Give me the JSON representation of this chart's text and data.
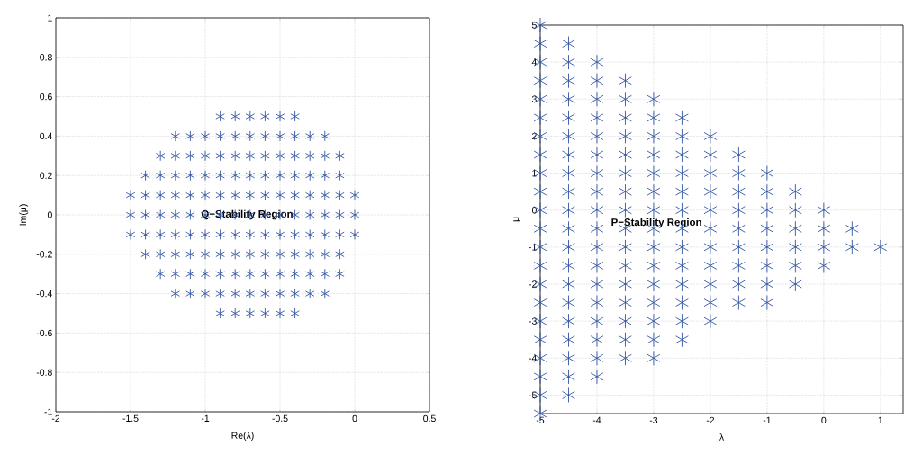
{
  "chart_data": [
    {
      "type": "scatter",
      "xlabel": "Re(λ)",
      "ylabel": "Im(μ)",
      "xlim": [
        -2,
        0.5
      ],
      "ylim": [
        -1,
        1
      ],
      "xticks": [
        -2,
        -1.5,
        -1,
        -0.5,
        0,
        0.5
      ],
      "yticks": [
        -1,
        -0.8,
        -0.6,
        -0.4,
        -0.2,
        0,
        0.2,
        0.4,
        0.6,
        0.8,
        1
      ],
      "grid": true,
      "marker": "cross",
      "annotations": [
        {
          "text": "Q−Stability Region",
          "x": -0.72,
          "y": 0
        }
      ],
      "series": [
        {
          "color": "#3053a0",
          "x": [
            -0.9,
            -0.8,
            -0.7,
            -0.6,
            -0.5,
            -0.4,
            -1.2,
            -1.1,
            -1,
            -0.9,
            -0.8,
            -0.7,
            -0.6,
            -0.5,
            -0.4,
            -0.3,
            -0.2,
            -1.3,
            -1.2,
            -1.1,
            -1,
            -0.9,
            -0.8,
            -0.7,
            -0.6,
            -0.5,
            -0.4,
            -0.3,
            -0.2,
            -0.1,
            -1.4,
            -1.3,
            -1.2,
            -1.1,
            -1,
            -0.9,
            -0.8,
            -0.7,
            -0.6,
            -0.5,
            -0.4,
            -0.3,
            -0.2,
            -0.1,
            -1.5,
            -1.4,
            -1.3,
            -1.2,
            -1.1,
            -1,
            -0.9,
            -0.8,
            -0.7,
            -0.6,
            -0.5,
            -0.4,
            -0.3,
            -0.2,
            -0.1,
            0,
            -1.5,
            -1.4,
            -1.3,
            -1.2,
            -1.1,
            -1,
            -0.9,
            -0.8,
            -0.7,
            -0.6,
            -0.5,
            -0.4,
            -0.3,
            -0.2,
            -0.1,
            0,
            -1.5,
            -1.4,
            -1.3,
            -1.2,
            -1.1,
            -1,
            -0.9,
            -0.8,
            -0.7,
            -0.6,
            -0.5,
            -0.4,
            -0.3,
            -0.2,
            -0.1,
            0,
            -1.4,
            -1.3,
            -1.2,
            -1.1,
            -1,
            -0.9,
            -0.8,
            -0.7,
            -0.6,
            -0.5,
            -0.4,
            -0.3,
            -0.2,
            -0.1,
            -1.3,
            -1.2,
            -1.1,
            -1,
            -0.9,
            -0.8,
            -0.7,
            -0.6,
            -0.5,
            -0.4,
            -0.3,
            -0.2,
            -0.1,
            -1.2,
            -1.1,
            -1,
            -0.9,
            -0.8,
            -0.7,
            -0.6,
            -0.5,
            -0.4,
            -0.3,
            -0.2,
            -0.9,
            -0.8,
            -0.7,
            -0.6,
            -0.5,
            -0.4
          ],
          "values": [
            0.5,
            0.5,
            0.5,
            0.5,
            0.5,
            0.5,
            0.4,
            0.4,
            0.4,
            0.4,
            0.4,
            0.4,
            0.4,
            0.4,
            0.4,
            0.4,
            0.4,
            0.3,
            0.3,
            0.3,
            0.3,
            0.3,
            0.3,
            0.3,
            0.3,
            0.3,
            0.3,
            0.3,
            0.3,
            0.3,
            0.2,
            0.2,
            0.2,
            0.2,
            0.2,
            0.2,
            0.2,
            0.2,
            0.2,
            0.2,
            0.2,
            0.2,
            0.2,
            0.2,
            0.1,
            0.1,
            0.1,
            0.1,
            0.1,
            0.1,
            0.1,
            0.1,
            0.1,
            0.1,
            0.1,
            0.1,
            0.1,
            0.1,
            0.1,
            0.1,
            0,
            0,
            0,
            0,
            0,
            0,
            0,
            0,
            0,
            0,
            0,
            0,
            0,
            0,
            0,
            0,
            -0.1,
            -0.1,
            -0.1,
            -0.1,
            -0.1,
            -0.1,
            -0.1,
            -0.1,
            -0.1,
            -0.1,
            -0.1,
            -0.1,
            -0.1,
            -0.1,
            -0.1,
            -0.1,
            -0.2,
            -0.2,
            -0.2,
            -0.2,
            -0.2,
            -0.2,
            -0.2,
            -0.2,
            -0.2,
            -0.2,
            -0.2,
            -0.2,
            -0.2,
            -0.2,
            -0.3,
            -0.3,
            -0.3,
            -0.3,
            -0.3,
            -0.3,
            -0.3,
            -0.3,
            -0.3,
            -0.3,
            -0.3,
            -0.3,
            -0.3,
            -0.4,
            -0.4,
            -0.4,
            -0.4,
            -0.4,
            -0.4,
            -0.4,
            -0.4,
            -0.4,
            -0.4,
            -0.4,
            -0.5,
            -0.5,
            -0.5,
            -0.5,
            -0.5,
            -0.5
          ]
        }
      ]
    },
    {
      "type": "scatter",
      "xlabel": "λ",
      "ylabel": "μ",
      "xlim": [
        -5,
        1.4
      ],
      "ylim": [
        -5.5,
        5
      ],
      "xticks": [
        -5,
        -4,
        -3,
        -2,
        -1,
        0,
        1
      ],
      "yticks": [
        -5,
        -4,
        -3,
        -2,
        -1,
        0,
        1,
        2,
        3,
        4,
        5
      ],
      "grid": true,
      "marker": "cross",
      "annotations": [
        {
          "text": "P−Stability Region",
          "x": -2.95,
          "y": -0.35
        }
      ],
      "series": [
        {
          "color": "#3053a0",
          "x": [
            -5,
            -5,
            -5,
            -5,
            -5,
            -5,
            -5,
            -5,
            -5,
            -5,
            -5,
            -5,
            -5,
            -5,
            -5,
            -5,
            -5,
            -5,
            -5,
            -5,
            -5,
            -5,
            -4.5,
            -4.5,
            -4.5,
            -4.5,
            -4.5,
            -4.5,
            -4.5,
            -4.5,
            -4.5,
            -4.5,
            -4.5,
            -4.5,
            -4.5,
            -4.5,
            -4.5,
            -4.5,
            -4.5,
            -4.5,
            -4.5,
            -4.5,
            -4,
            -4,
            -4,
            -4,
            -4,
            -4,
            -4,
            -4,
            -4,
            -4,
            -4,
            -4,
            -4,
            -4,
            -4,
            -4,
            -4,
            -4,
            -3.5,
            -3.5,
            -3.5,
            -3.5,
            -3.5,
            -3.5,
            -3.5,
            -3.5,
            -3.5,
            -3.5,
            -3.5,
            -3.5,
            -3.5,
            -3.5,
            -3.5,
            -3.5,
            -3,
            -3,
            -3,
            -3,
            -3,
            -3,
            -3,
            -3,
            -3,
            -3,
            -3,
            -3,
            -3,
            -3,
            -3,
            -2.5,
            -2.5,
            -2.5,
            -2.5,
            -2.5,
            -2.5,
            -2.5,
            -2.5,
            -2.5,
            -2.5,
            -2.5,
            -2.5,
            -2.5,
            -2,
            -2,
            -2,
            -2,
            -2,
            -2,
            -2,
            -2,
            -2,
            -2,
            -2,
            -1.5,
            -1.5,
            -1.5,
            -1.5,
            -1.5,
            -1.5,
            -1.5,
            -1.5,
            -1.5,
            -1,
            -1,
            -1,
            -1,
            -1,
            -1,
            -1,
            -1,
            -0.5,
            -0.5,
            -0.5,
            -0.5,
            -0.5,
            -0.5,
            0,
            0,
            0,
            0,
            0.5,
            0.5,
            1
          ],
          "values": [
            -5.5,
            -5,
            -4.5,
            -4,
            -3.5,
            -3,
            -2.5,
            -2,
            -1.5,
            -1,
            -0.5,
            0,
            0.5,
            1,
            1.5,
            2,
            2.5,
            3,
            3.5,
            4,
            4.5,
            5,
            -5,
            -4.5,
            -4,
            -3.5,
            -3,
            -2.5,
            -2,
            -1.5,
            -1,
            -0.5,
            0,
            0.5,
            1,
            1.5,
            2,
            2.5,
            3,
            3.5,
            4,
            4.5,
            -4.5,
            -4,
            -3.5,
            -3,
            -2.5,
            -2,
            -1.5,
            -1,
            -0.5,
            0,
            0.5,
            1,
            1.5,
            2,
            2.5,
            3,
            3.5,
            4,
            -4,
            -3.5,
            -3,
            -2.5,
            -2,
            -1.5,
            -1,
            -0.5,
            0,
            0.5,
            1,
            1.5,
            2,
            2.5,
            3,
            3.5,
            -4,
            -3.5,
            -3,
            -2.5,
            -2,
            -1.5,
            -1,
            -0.5,
            0,
            0.5,
            1,
            1.5,
            2,
            2.5,
            3,
            -3.5,
            -3,
            -2.5,
            -2,
            -1.5,
            -1,
            -0.5,
            0,
            0.5,
            1,
            1.5,
            2,
            2.5,
            -3,
            -2.5,
            -2,
            -1.5,
            -1,
            -0.5,
            0,
            0.5,
            1,
            1.5,
            2,
            -2.5,
            -2,
            -1.5,
            -1,
            -0.5,
            0,
            0.5,
            1,
            1.5,
            -2.5,
            -2,
            -1.5,
            -1,
            -0.5,
            0,
            0.5,
            1,
            -2,
            -1.5,
            -1,
            -0.5,
            0,
            0.5,
            -1.5,
            -1,
            -0.5,
            0,
            -1,
            -0.5,
            -1
          ]
        }
      ]
    }
  ]
}
